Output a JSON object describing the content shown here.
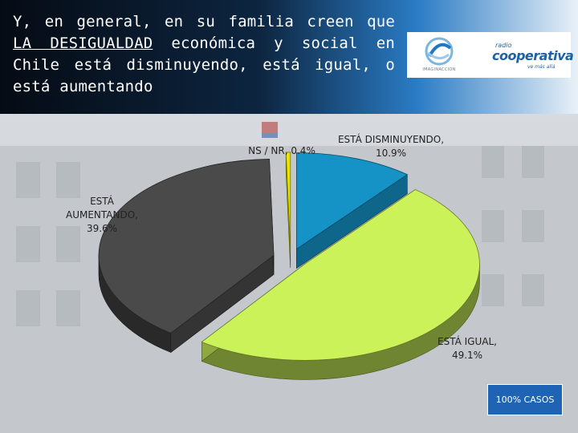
{
  "header": {
    "title_parts": [
      "Y, en general, en su familia creen que ",
      "LA DESIGUALDAD",
      " económica y social en Chile está disminuyendo, está igual, o está aumentando"
    ]
  },
  "logos": {
    "imaginaccion": "IMAGINACCION",
    "radio": "radio",
    "cooperativa": "cooperativa",
    "tagline": "ve más allá"
  },
  "badge": {
    "label": "100% CASOS"
  },
  "colors": {
    "aumentando": "#4a4a4a",
    "igual": "#ccf25a",
    "disminuyendo": "#1592c6",
    "ns_nr": "#e8e600"
  },
  "chart_data": {
    "type": "pie",
    "title": "",
    "three_d": true,
    "exploded": true,
    "slices": [
      {
        "label": "ESTÁ DISMINUYENDO,",
        "pct_label": "10.9%",
        "value": 10.9,
        "color": "#1592c6"
      },
      {
        "label": "ESTÁ IGUAL,",
        "pct_label": "49.1%",
        "value": 49.1,
        "color": "#ccf25a"
      },
      {
        "label": "ESTÁ AUMENTANDO,",
        "pct_label": "39.6%",
        "value": 39.6,
        "color": "#4a4a4a"
      },
      {
        "label": "NS / NR,",
        "pct_label": "0.4%",
        "value": 0.4,
        "color": "#e8e600"
      }
    ]
  }
}
